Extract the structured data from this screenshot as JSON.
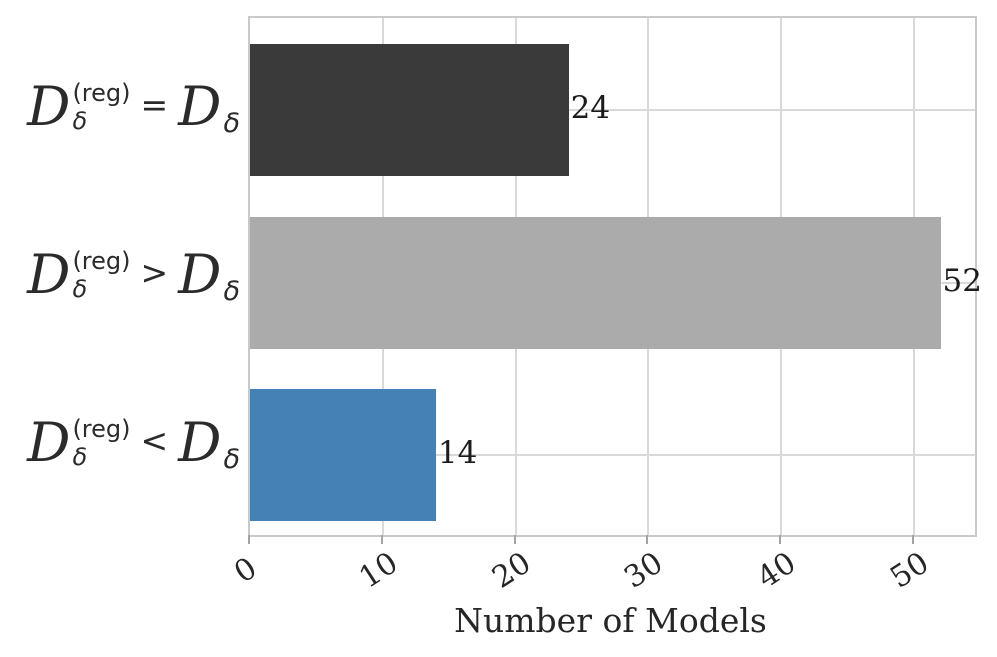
{
  "style": {
    "background": "#ffffff",
    "grid_color": "#d9d9d9",
    "border_color": "#c9c9c9",
    "tick_color": "#a3a3a3",
    "text_color": "#262626",
    "value_label_color": "#1c1c1c"
  },
  "chart_data": {
    "type": "bar",
    "orientation": "horizontal",
    "title": "",
    "xlabel": "Number of Models",
    "ylabel": "",
    "xlim": [
      0,
      54.6
    ],
    "xticks": [
      0,
      10,
      20,
      30,
      40,
      50
    ],
    "xtick_rotation_deg": 33,
    "grid": true,
    "legend": "none",
    "categories": [
      {
        "label_plain": "D_delta^(reg) = D_delta",
        "lhs_base": "D",
        "lhs_sup": "(reg)",
        "lhs_sub": "δ",
        "operator": "=",
        "rhs_base": "D",
        "rhs_sub": "δ",
        "value": 24,
        "value_label": "24",
        "color": "#3a3a3a"
      },
      {
        "label_plain": "D_delta^(reg) > D_delta",
        "lhs_base": "D",
        "lhs_sup": "(reg)",
        "lhs_sub": "δ",
        "operator": ">",
        "rhs_base": "D",
        "rhs_sub": "δ",
        "value": 52,
        "value_label": "52",
        "color": "#ababab"
      },
      {
        "label_plain": "D_delta^(reg) < D_delta",
        "lhs_base": "D",
        "lhs_sup": "(reg)",
        "lhs_sub": "δ",
        "operator": "<",
        "rhs_base": "D",
        "rhs_sub": "δ",
        "value": 14,
        "value_label": "14",
        "color": "#4581b4"
      }
    ]
  }
}
